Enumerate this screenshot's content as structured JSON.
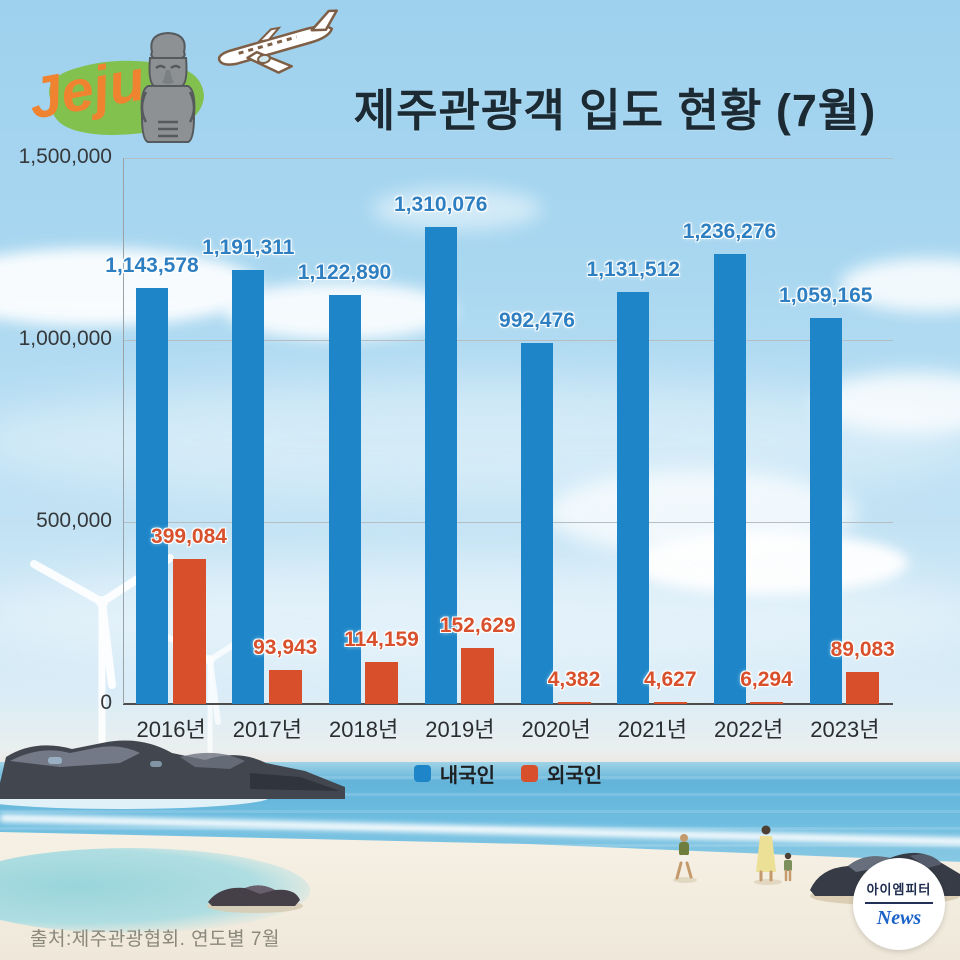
{
  "header": {
    "logo_text": "Jeju",
    "title": "제주관광객 입도 현황 (7월)"
  },
  "chart_data": {
    "type": "bar",
    "title": "제주관광객 입도 현황 (7월)",
    "categories": [
      "2016년",
      "2017년",
      "2018년",
      "2019년",
      "2020년",
      "2021년",
      "2022년",
      "2023년"
    ],
    "series": [
      {
        "name": "내국인",
        "color": "#1e86c8",
        "label_color": "#2e7fc1",
        "values": [
          1143578,
          1191311,
          1122890,
          1310076,
          992476,
          1131512,
          1236276,
          1059165
        ]
      },
      {
        "name": "외국인",
        "color": "#d8502b",
        "label_color": "#d8502c",
        "values": [
          399084,
          93943,
          114159,
          152629,
          4382,
          4627,
          6294,
          89083
        ]
      }
    ],
    "ylim": [
      0,
      1500000
    ],
    "yticks": {
      "labels": [
        "1,500,000",
        "1,000,000",
        "500,000",
        "0"
      ],
      "values": [
        1500000,
        1000000,
        500000,
        0
      ]
    },
    "grid": true,
    "legend_position": "bottom"
  },
  "footer": {
    "source": "출처:제주관광협회. 연도별 7월"
  },
  "badge": {
    "line1": "아이엠피터",
    "line2": "News"
  },
  "icons": {
    "jeju_island": "green-island-blob",
    "statue": "dol-hareubang-statue-icon",
    "airplane": "airplane-icon"
  },
  "colors": {
    "domestic_bar": "#1e86c8",
    "foreign_bar": "#d8502b",
    "sky": "#a9d7f0",
    "sea": "#63b4da",
    "sand": "#f2ecdf",
    "title_text": "#1b2a33",
    "logo_orange": "#f08330",
    "island_green": "#83c14f"
  }
}
